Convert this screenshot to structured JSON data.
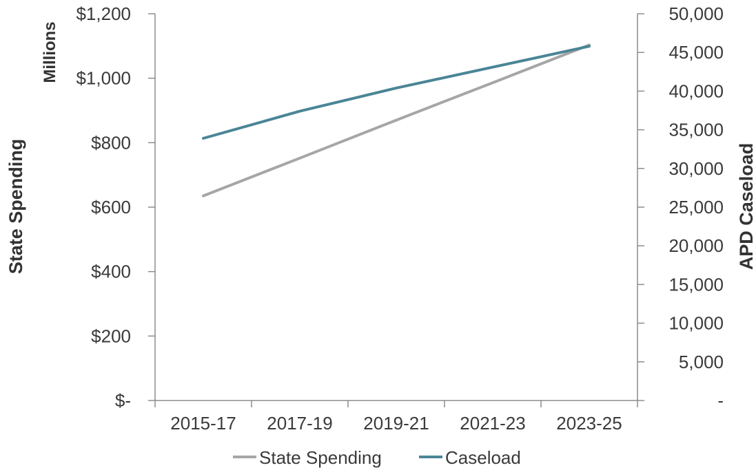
{
  "chart_data": {
    "type": "line",
    "categories": [
      "2015-17",
      "2017-19",
      "2019-21",
      "2021-23",
      "2023-25"
    ],
    "series": [
      {
        "name": "State Spending",
        "axis": "left",
        "color": "#a6a6a6",
        "values": [
          635,
          752,
          870,
          986,
          1103
        ]
      },
      {
        "name": "Caseload",
        "axis": "right",
        "color": "#4a8596",
        "values": [
          33900,
          37400,
          40400,
          43100,
          45800
        ]
      }
    ],
    "left_axis": {
      "title": "State Spending",
      "unit_label": "Millions",
      "ylim": [
        0,
        1200
      ],
      "ticks": [
        0,
        200,
        400,
        600,
        800,
        1000,
        1200
      ],
      "tick_labels": [
        "$-",
        "$200",
        "$400",
        "$600",
        "$800",
        "$1,000",
        "$1,200"
      ]
    },
    "right_axis": {
      "title": "APD Caseload",
      "ylim": [
        0,
        50000
      ],
      "ticks": [
        0,
        5000,
        10000,
        15000,
        20000,
        25000,
        30000,
        35000,
        40000,
        45000,
        50000
      ],
      "tick_labels": [
        "-",
        "5,000",
        "10,000",
        "15,000",
        "20,000",
        "25,000",
        "30,000",
        "35,000",
        "40,000",
        "45,000",
        "50,000"
      ]
    },
    "grid": false,
    "legend": {
      "position": "bottom",
      "entries": [
        "State Spending",
        "Caseload"
      ]
    }
  }
}
